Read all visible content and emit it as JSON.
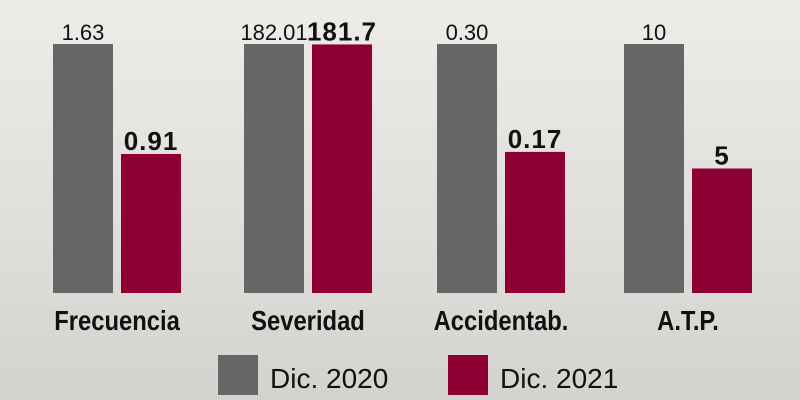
{
  "chart_data": {
    "type": "bar",
    "categories": [
      "Frecuencia",
      "Severidad",
      "Accidentab.",
      "A.T.P."
    ],
    "series": [
      {
        "name": "Dic. 2020",
        "color": "#676565",
        "values": [
          1.63,
          182.01,
          0.3,
          10
        ],
        "value_labels": [
          "1.63",
          "182.01",
          "0.30",
          "10"
        ]
      },
      {
        "name": "Dic. 2021",
        "color": "#8c0034",
        "values": [
          0.91,
          181.7,
          0.17,
          5
        ]
      }
    ]
  }
}
